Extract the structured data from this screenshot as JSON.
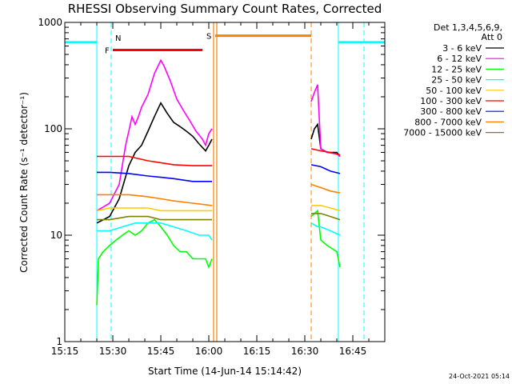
{
  "chart_data": {
    "type": "line",
    "title": "RHESSI Observing Summary Count Rates, Corrected",
    "xlabel": "Start Time (14-Jun-14 15:14:42)",
    "ylabel": "Corrected Count Rate (s⁻¹ detector⁻¹)",
    "x_unit": "minutes after 15:15",
    "xlim": [
      0,
      100
    ],
    "ylim": [
      1,
      1000
    ],
    "y_scale": "log",
    "x_ticks": [
      {
        "v": 0,
        "label": "15:15"
      },
      {
        "v": 15,
        "label": "15:30"
      },
      {
        "v": 30,
        "label": "15:45"
      },
      {
        "v": 45,
        "label": "16:00"
      },
      {
        "v": 60,
        "label": "16:15"
      },
      {
        "v": 75,
        "label": "16:30"
      },
      {
        "v": 90,
        "label": "16:45"
      }
    ],
    "y_ticks": [
      {
        "v": 1,
        "label": "1"
      },
      {
        "v": 10,
        "label": "10"
      },
      {
        "v": 100,
        "label": "100"
      },
      {
        "v": 1000,
        "label": "1000"
      }
    ],
    "legend_header": [
      "Det 1,3,4,5,6,9,",
      "Att 0"
    ],
    "legend_position": "right",
    "series": [
      {
        "name": "3 - 6 keV",
        "color": "#000000",
        "points": [
          [
            10,
            13
          ],
          [
            14,
            15
          ],
          [
            17,
            22
          ],
          [
            20,
            45
          ],
          [
            22,
            60
          ],
          [
            24,
            70
          ],
          [
            26,
            95
          ],
          [
            28,
            130
          ],
          [
            30,
            175
          ],
          [
            32,
            140
          ],
          [
            34,
            115
          ],
          [
            36,
            105
          ],
          [
            38,
            95
          ],
          [
            40,
            85
          ],
          [
            42,
            72
          ],
          [
            44,
            62
          ],
          [
            45,
            70
          ],
          [
            46,
            80
          ]
        ],
        "points2": [
          [
            77,
            80
          ],
          [
            78,
            100
          ],
          [
            79,
            110
          ],
          [
            80,
            65
          ],
          [
            82,
            60
          ],
          [
            85,
            60
          ],
          [
            86,
            55
          ]
        ]
      },
      {
        "name": "6 - 12 keV",
        "color": "#ff00ff",
        "points": [
          [
            10,
            17
          ],
          [
            14,
            20
          ],
          [
            17,
            30
          ],
          [
            19,
            70
          ],
          [
            20,
            95
          ],
          [
            21,
            130
          ],
          [
            22,
            110
          ],
          [
            23,
            130
          ],
          [
            24,
            160
          ],
          [
            26,
            210
          ],
          [
            28,
            330
          ],
          [
            30,
            440
          ],
          [
            31,
            390
          ],
          [
            33,
            280
          ],
          [
            35,
            190
          ],
          [
            37,
            150
          ],
          [
            39,
            120
          ],
          [
            41,
            95
          ],
          [
            43,
            80
          ],
          [
            44,
            70
          ],
          [
            45,
            90
          ],
          [
            46,
            100
          ]
        ],
        "points2": [
          [
            77,
            180
          ],
          [
            78,
            220
          ],
          [
            79,
            260
          ],
          [
            80,
            65
          ],
          [
            82,
            60
          ],
          [
            85,
            58
          ],
          [
            86,
            55
          ]
        ]
      },
      {
        "name": "12 - 25 keV",
        "color": "#00ff00",
        "points": [
          [
            10,
            2.2
          ],
          [
            10.5,
            6
          ],
          [
            12,
            7
          ],
          [
            14,
            8
          ],
          [
            16,
            9
          ],
          [
            18,
            10
          ],
          [
            20,
            11
          ],
          [
            22,
            10
          ],
          [
            24,
            11
          ],
          [
            26,
            13
          ],
          [
            28,
            14
          ],
          [
            30,
            12
          ],
          [
            32,
            10
          ],
          [
            34,
            8
          ],
          [
            36,
            7
          ],
          [
            38,
            7
          ],
          [
            40,
            6
          ],
          [
            42,
            6
          ],
          [
            44,
            6
          ],
          [
            45,
            5
          ],
          [
            46,
            6
          ]
        ],
        "points2": [
          [
            77,
            15
          ],
          [
            78,
            16
          ],
          [
            79,
            17
          ],
          [
            80,
            9
          ],
          [
            82,
            8
          ],
          [
            85,
            7
          ],
          [
            86,
            5
          ]
        ]
      },
      {
        "name": "25 - 50 keV",
        "color": "#00ffff",
        "points": [
          [
            10,
            11
          ],
          [
            14,
            11
          ],
          [
            18,
            12
          ],
          [
            22,
            13
          ],
          [
            26,
            13
          ],
          [
            30,
            13
          ],
          [
            34,
            12
          ],
          [
            38,
            11
          ],
          [
            42,
            10
          ],
          [
            45,
            10
          ],
          [
            46,
            9
          ]
        ],
        "points2": [
          [
            77,
            13
          ],
          [
            79,
            12
          ],
          [
            80,
            12
          ],
          [
            83,
            11
          ],
          [
            86,
            10
          ]
        ]
      },
      {
        "name": "50 - 100 keV",
        "color": "#ffcc00",
        "points": [
          [
            10,
            17
          ],
          [
            14,
            18
          ],
          [
            20,
            18
          ],
          [
            26,
            18
          ],
          [
            30,
            17
          ],
          [
            34,
            17
          ],
          [
            40,
            17
          ],
          [
            46,
            17
          ]
        ],
        "points2": [
          [
            77,
            19
          ],
          [
            80,
            19
          ],
          [
            83,
            18
          ],
          [
            86,
            17
          ]
        ]
      },
      {
        "name": "100 - 300 keV",
        "color": "#ff0000",
        "points": [
          [
            10,
            55
          ],
          [
            14,
            55
          ],
          [
            20,
            55
          ],
          [
            26,
            50
          ],
          [
            30,
            48
          ],
          [
            34,
            46
          ],
          [
            40,
            45
          ],
          [
            46,
            45
          ]
        ],
        "points2": [
          [
            77,
            65
          ],
          [
            80,
            62
          ],
          [
            83,
            60
          ],
          [
            86,
            57
          ]
        ]
      },
      {
        "name": "300 - 800 keV",
        "color": "#0000ff",
        "points": [
          [
            10,
            39
          ],
          [
            14,
            39
          ],
          [
            20,
            38
          ],
          [
            26,
            36
          ],
          [
            30,
            35
          ],
          [
            34,
            34
          ],
          [
            40,
            32
          ],
          [
            46,
            32
          ]
        ],
        "points2": [
          [
            77,
            46
          ],
          [
            80,
            44
          ],
          [
            83,
            40
          ],
          [
            86,
            38
          ]
        ]
      },
      {
        "name": "800 - 7000 keV",
        "color": "#ff8000",
        "points": [
          [
            10,
            24
          ],
          [
            14,
            24
          ],
          [
            20,
            24
          ],
          [
            26,
            23
          ],
          [
            30,
            22
          ],
          [
            34,
            21
          ],
          [
            40,
            20
          ],
          [
            46,
            19
          ]
        ],
        "points2": [
          [
            77,
            30
          ],
          [
            80,
            28
          ],
          [
            83,
            26
          ],
          [
            86,
            25
          ]
        ]
      },
      {
        "name": "7000 - 15000 keV",
        "color": "#808000",
        "points": [
          [
            10,
            14
          ],
          [
            14,
            14
          ],
          [
            20,
            15
          ],
          [
            26,
            15
          ],
          [
            30,
            14
          ],
          [
            34,
            14
          ],
          [
            40,
            14
          ],
          [
            46,
            14
          ]
        ],
        "points2": [
          [
            77,
            16
          ],
          [
            80,
            16
          ],
          [
            83,
            15
          ],
          [
            86,
            14
          ]
        ]
      }
    ],
    "annotations": [
      {
        "label": "N",
        "color": "#00ffff"
      },
      {
        "label": "F",
        "color": "#ff0000"
      },
      {
        "label": "S",
        "color": "#ff8000"
      }
    ],
    "annotation_markers": {
      "night_bars": [
        {
          "x0": 0,
          "x1": 10,
          "y": 650
        },
        {
          "x0": 85.5,
          "x1": 100,
          "y": 650
        }
      ],
      "night_solid": [
        10,
        85.5
      ],
      "night_dashed": [
        14.5,
        93.5
      ],
      "flare_bar": {
        "x0": 15,
        "x1": 43,
        "y": 550
      },
      "saa_bar": {
        "x0": 47,
        "x1": 77,
        "y": 750
      },
      "saa_solid": [
        46.5,
        47.5
      ],
      "saa_dashed": [
        77
      ]
    },
    "timestamp": "24-Oct-2021 05:14"
  }
}
